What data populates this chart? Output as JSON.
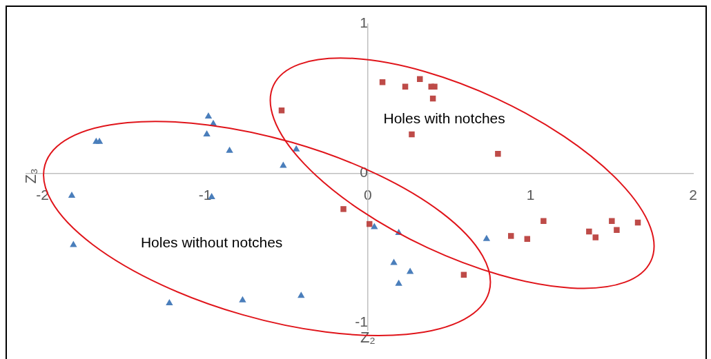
{
  "chart_data": {
    "type": "scatter",
    "xlabel": "Z₂",
    "ylabel": "Z₃",
    "xlim": [
      -2.1,
      2
    ],
    "ylim": [
      -1.05,
      1
    ],
    "xticks": [
      -2,
      -1,
      0,
      1,
      2
    ],
    "yticks": [
      -1,
      0,
      1
    ],
    "grid": false,
    "legend": false,
    "series": [
      {
        "marker": "triangle",
        "color": "#4a7ebb",
        "x": [
          -0.98,
          -0.95,
          -0.99,
          -1.67,
          -1.65,
          -0.85,
          -0.44,
          -0.52,
          -1.82,
          -0.96,
          -1.81,
          -1.22,
          -0.77,
          -0.41,
          0.04,
          0.19,
          0.73,
          0.16,
          0.26,
          0.19
        ],
        "values": [
          0.38,
          0.33,
          0.26,
          0.21,
          0.21,
          0.15,
          0.16,
          0.05,
          -0.15,
          -0.16,
          -0.48,
          -0.87,
          -0.85,
          -0.82,
          -0.36,
          -0.4,
          -0.44,
          -0.6,
          -0.66,
          -0.74
        ]
      },
      {
        "marker": "square",
        "color": "#be4b48",
        "x": [
          0.09,
          0.23,
          0.32,
          0.39,
          0.41,
          0.4,
          0.27,
          0.8,
          -0.15,
          0.01,
          0.59,
          -0.53,
          0.88,
          0.98,
          1.08,
          1.36,
          1.4,
          1.5,
          1.53,
          1.66
        ],
        "values": [
          0.61,
          0.58,
          0.63,
          0.58,
          0.58,
          0.5,
          0.26,
          0.13,
          -0.24,
          -0.34,
          -0.68,
          0.42,
          -0.42,
          -0.44,
          -0.32,
          -0.39,
          -0.43,
          -0.32,
          -0.38,
          -0.33
        ]
      }
    ],
    "annotations": [
      "Holes with notches",
      "Holes without notches"
    ]
  }
}
